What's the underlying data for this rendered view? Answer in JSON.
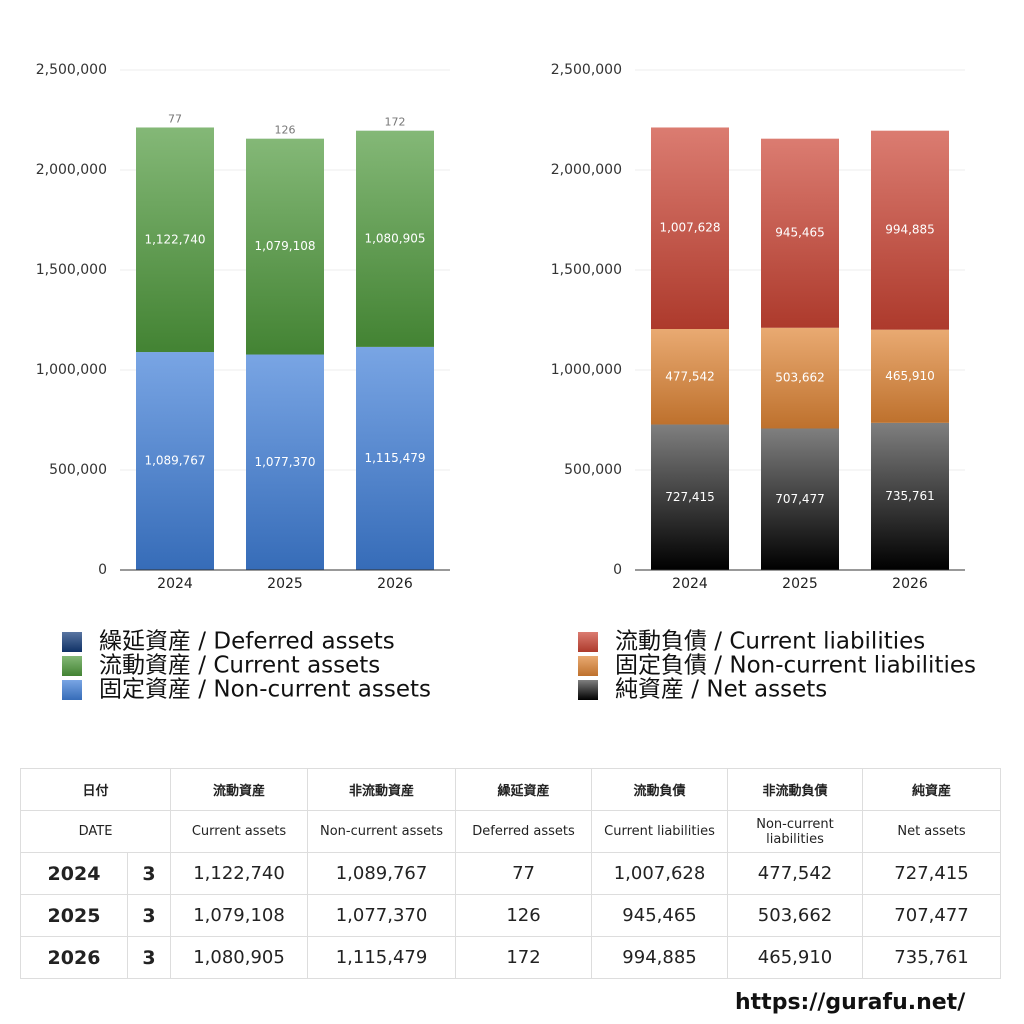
{
  "chart_data": [
    {
      "type": "stacked_bar",
      "categories": [
        "2024",
        "2025",
        "2026"
      ],
      "ylim": [
        0,
        2500000
      ],
      "yticks": [
        0,
        {
          "value": 500000,
          "label": "500,000"
        },
        {
          "value": 1000000,
          "label": "1,000,000"
        },
        {
          "value": 1500000,
          "label": "1,500,000"
        },
        {
          "value": 2000000,
          "label": "2,000,000"
        },
        {
          "value": 2500000,
          "label": "2,500,000"
        }
      ],
      "grid": true,
      "series": [
        {
          "name": "固定資産 / Non-current assets",
          "color": "#3f7fd9",
          "values": [
            1089767,
            1077370,
            1115479
          ],
          "value_labels": [
            "1,089,767",
            "1,077,370",
            "1,115,479"
          ]
        },
        {
          "name": "流動資産 / Current assets",
          "color": "#4f9a3c",
          "values": [
            1122740,
            1079108,
            1080905
          ],
          "value_labels": [
            "1,122,740",
            "1,079,108",
            "1,080,905"
          ]
        },
        {
          "name": "繰延資産 / Deferred assets",
          "color": "#123a78",
          "values": [
            77,
            126,
            172
          ]
        }
      ]
    },
    {
      "type": "stacked_bar",
      "categories": [
        "2024",
        "2025",
        "2026"
      ],
      "ylim": [
        0,
        2500000
      ],
      "yticks": [
        0,
        {
          "value": 500000,
          "label": "500,000"
        },
        {
          "value": 1000000,
          "label": "1,000,000"
        },
        {
          "value": 1500000,
          "label": "1,500,000"
        },
        {
          "value": 2000000,
          "label": "2,000,000"
        },
        {
          "value": 2500000,
          "label": "2,500,000"
        }
      ],
      "grid": true,
      "series": [
        {
          "name": "純資産 / Net assets",
          "color": "#3a3a3a",
          "values": [
            727415,
            707477,
            735761
          ],
          "value_labels": [
            "727,415",
            "707,477",
            "735,761"
          ]
        },
        {
          "name": "固定負債 / Non-current liabilities",
          "color": "#e08535",
          "values": [
            477542,
            503662,
            465910
          ],
          "value_labels": [
            "477,542",
            "503,662",
            "465,910"
          ]
        },
        {
          "name": "流動負債 / Current liabilities",
          "color": "#cc4434",
          "values": [
            1007628,
            945465,
            994885
          ],
          "value_labels": [
            "1,007,628",
            "945,465",
            "994,885"
          ]
        }
      ]
    }
  ],
  "table": {
    "header_ja": [
      "日付",
      "流動資産",
      "非流動資産",
      "繰延資産",
      "流動負債",
      "非流動負債",
      "純資産"
    ],
    "header_en": [
      "DATE",
      "Current assets",
      "Non-current assets",
      "Deferred assets",
      "Current liabilities",
      "Non-current liabilities",
      "Net assets"
    ],
    "rows": [
      [
        "2024",
        "3",
        "1,122,740",
        "1,089,767",
        "77",
        "1,007,628",
        "477,542",
        "727,415"
      ],
      [
        "2025",
        "3",
        "1,079,108",
        "1,077,370",
        "126",
        "945,465",
        "503,662",
        "707,477"
      ],
      [
        "2026",
        "3",
        "1,080,905",
        "1,115,479",
        "172",
        "994,885",
        "465,910",
        "735,761"
      ]
    ]
  },
  "footer": {
    "url": "https://gurafu.net/"
  }
}
